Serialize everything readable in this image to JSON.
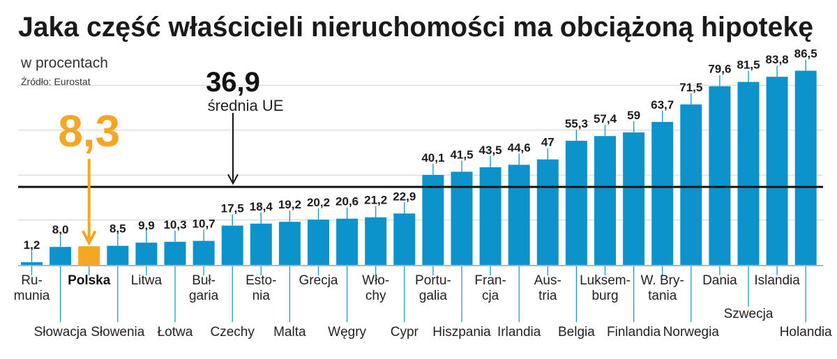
{
  "chart_data": {
    "type": "bar",
    "title": "Jaka część właścicieli nieruchomości ma obciążoną hipotekę",
    "subtitle": "w procentach",
    "source": "Źródło: Eurostat",
    "ylim": [
      0,
      90
    ],
    "grid": true,
    "highlight_color": "#f5a623",
    "bar_color": "#0c93cc",
    "reference_line": {
      "value": 36.9,
      "value_label": "36,9",
      "label": "średnia UE"
    },
    "highlight": {
      "category": "Polska",
      "value_label": "8,3"
    },
    "categories": [
      "Rumunia",
      "Słowacja",
      "Polska",
      "Słowenia",
      "Litwa",
      "Łotwa",
      "Bułgaria",
      "Czechy",
      "Estonia",
      "Malta",
      "Grecja",
      "Węgry",
      "Włochy",
      "Cypr",
      "Portugalia",
      "Hiszpania",
      "Francja",
      "Irlandia",
      "Austria",
      "Belgia",
      "Luksemburg",
      "Finlandia",
      "W. Brytania",
      "Norwegia",
      "Dania",
      "Szwecja",
      "Islandia",
      "Holandia"
    ],
    "values": [
      1.2,
      8.0,
      8.3,
      8.5,
      9.9,
      10.3,
      10.7,
      17.5,
      18.4,
      19.2,
      20.2,
      20.6,
      21.2,
      22.9,
      40.1,
      41.5,
      43.5,
      44.6,
      47,
      55.3,
      57.4,
      59,
      63.7,
      71.5,
      79.6,
      81.5,
      83.8,
      86.5
    ],
    "value_labels": [
      "1,2",
      "8,0",
      "",
      "8,5",
      "9,9",
      "10,3",
      "10,7",
      "17,5",
      "18,4",
      "19,2",
      "20,2",
      "20,6",
      "21,2",
      "22,9",
      "40,1",
      "41,5",
      "43,5",
      "44,6",
      "47",
      "55,3",
      "57,4",
      "59",
      "63,7",
      "71,5",
      "79,6",
      "81,5",
      "83,8",
      "86,5"
    ],
    "category_display": [
      [
        "Ru-",
        "munia"
      ],
      [
        "Słowacja"
      ],
      [
        "Polska"
      ],
      [
        "Słowenia"
      ],
      [
        "Litwa"
      ],
      [
        "Łotwa"
      ],
      [
        "Buł-",
        "garia"
      ],
      [
        "Czechy"
      ],
      [
        "Esto-",
        "nia"
      ],
      [
        "Malta"
      ],
      [
        "Grecja"
      ],
      [
        "Węgry"
      ],
      [
        "Wło-",
        "chy"
      ],
      [
        "Cypr"
      ],
      [
        "Portu-",
        "galia"
      ],
      [
        "Hiszpania"
      ],
      [
        "Fran-",
        "cja"
      ],
      [
        "Irlandia"
      ],
      [
        "Aus-",
        "tria"
      ],
      [
        "Belgia"
      ],
      [
        "Luksem-",
        "burg"
      ],
      [
        "Finlandia"
      ],
      [
        "W. Bry-",
        "tania"
      ],
      [
        "Norwegia"
      ],
      [
        "Dania"
      ],
      [
        "Szwecja"
      ],
      [
        "Islandia"
      ],
      [
        "Holandia"
      ]
    ]
  }
}
